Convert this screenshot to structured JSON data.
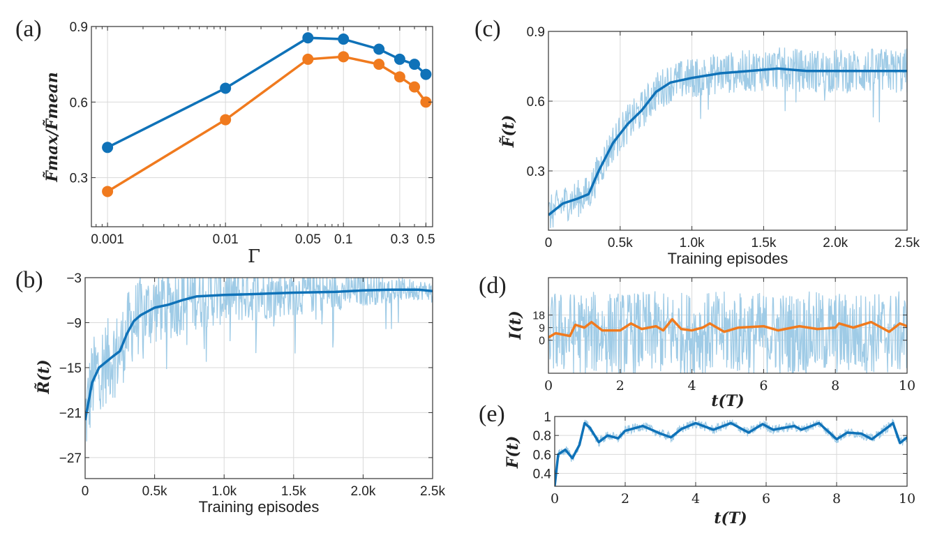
{
  "colors": {
    "blue": "#0f72b8",
    "orange": "#f07a1e",
    "light_blue": "#9fcbe6",
    "grid": "#d9d9d9"
  },
  "chart_data": [
    {
      "panel": "(a)",
      "type": "line",
      "xscale": "log",
      "xlabel": "Γ",
      "ylabel": "F̃max/F̃mean",
      "xlim": [
        0.00073,
        0.57
      ],
      "ylim": [
        0.105,
        0.9
      ],
      "grid": true,
      "xticks": [
        0.001,
        0.01,
        0.05,
        0.1,
        0.3,
        0.5
      ],
      "xtick_labels": [
        "0.001",
        "0.01",
        "0.05",
        "0.1",
        "0.3",
        "0.5"
      ],
      "yticks": [
        0.3,
        0.6,
        0.9
      ],
      "ytick_labels": [
        "0.3",
        "0.6",
        "0.9"
      ],
      "x": [
        0.001,
        0.01,
        0.05,
        0.1,
        0.2,
        0.3,
        0.4,
        0.5
      ],
      "series": [
        {
          "color": "blue",
          "markers": true,
          "values": [
            0.42,
            0.655,
            0.855,
            0.85,
            0.81,
            0.77,
            0.75,
            0.71
          ]
        },
        {
          "color": "orange",
          "markers": true,
          "values": [
            0.245,
            0.53,
            0.77,
            0.78,
            0.75,
            0.7,
            0.66,
            0.6
          ]
        }
      ]
    },
    {
      "panel": "(b)",
      "type": "line",
      "xlabel": "Training episodes",
      "ylabel": "R̃(t)",
      "xlim": [
        0,
        2500
      ],
      "ylim": [
        -29.8,
        -3
      ],
      "grid": true,
      "xticks": [
        0,
        500,
        1000,
        1500,
        2000,
        2500
      ],
      "xtick_labels": [
        "0",
        "0.5k",
        "1.0k",
        "1.5k",
        "2.0k",
        "2.5k"
      ],
      "yticks": [
        -27,
        -21,
        -15,
        -9,
        -3
      ],
      "ytick_labels": [
        "−27",
        "−21",
        "−15",
        "−9",
        "−3"
      ],
      "series": [
        {
          "color": "light_blue",
          "kind": "raw",
          "spread_early": 6,
          "spread_late": 1.2,
          "points": [
            [
              0,
              -22
            ],
            [
              50,
              -17
            ],
            [
              100,
              -15
            ],
            [
              200,
              -13.5
            ],
            [
              250,
              -12.8
            ],
            [
              300,
              -10.5
            ],
            [
              350,
              -8.8
            ],
            [
              400,
              -8
            ],
            [
              500,
              -7
            ],
            [
              600,
              -6.6
            ],
            [
              700,
              -6
            ],
            [
              800,
              -5.5
            ],
            [
              1000,
              -5.3
            ],
            [
              1200,
              -5.2
            ],
            [
              1500,
              -5
            ],
            [
              1800,
              -4.9
            ],
            [
              2000,
              -4.7
            ],
            [
              2200,
              -4.6
            ],
            [
              2400,
              -4.6
            ],
            [
              2500,
              -4.8
            ]
          ]
        },
        {
          "color": "blue",
          "kind": "smoothed",
          "points": [
            [
              0,
              -22
            ],
            [
              50,
              -17
            ],
            [
              100,
              -15
            ],
            [
              200,
              -13.5
            ],
            [
              250,
              -12.8
            ],
            [
              300,
              -10.5
            ],
            [
              350,
              -8.8
            ],
            [
              400,
              -8
            ],
            [
              500,
              -7
            ],
            [
              600,
              -6.6
            ],
            [
              700,
              -6
            ],
            [
              800,
              -5.5
            ],
            [
              1000,
              -5.3
            ],
            [
              1200,
              -5.2
            ],
            [
              1500,
              -5
            ],
            [
              1800,
              -4.9
            ],
            [
              2000,
              -4.7
            ],
            [
              2200,
              -4.6
            ],
            [
              2400,
              -4.6
            ],
            [
              2500,
              -4.8
            ]
          ]
        }
      ]
    },
    {
      "panel": "(c)",
      "type": "line",
      "xlabel": "Training episodes",
      "ylabel": "F̃(t)",
      "xlim": [
        0,
        2500
      ],
      "ylim": [
        0.045,
        0.9
      ],
      "grid": true,
      "xticks": [
        0,
        500,
        1000,
        1500,
        2000,
        2500
      ],
      "xtick_labels": [
        "0",
        "0.5k",
        "1.0k",
        "1.5k",
        "2.0k",
        "2.5k"
      ],
      "yticks": [
        0.3,
        0.6,
        0.9
      ],
      "ytick_labels": [
        "0.3",
        "0.6",
        "0.9"
      ],
      "series": [
        {
          "color": "light_blue",
          "kind": "raw",
          "spread_early": 0.08,
          "spread_late": 0.1,
          "points": [
            [
              0,
              0.11
            ],
            [
              100,
              0.16
            ],
            [
              200,
              0.18
            ],
            [
              280,
              0.2
            ],
            [
              350,
              0.3
            ],
            [
              450,
              0.42
            ],
            [
              550,
              0.5
            ],
            [
              650,
              0.56
            ],
            [
              750,
              0.64
            ],
            [
              850,
              0.68
            ],
            [
              1000,
              0.7
            ],
            [
              1200,
              0.72
            ],
            [
              1400,
              0.73
            ],
            [
              1600,
              0.74
            ],
            [
              1800,
              0.73
            ],
            [
              2000,
              0.73
            ],
            [
              2200,
              0.73
            ],
            [
              2500,
              0.73
            ]
          ]
        },
        {
          "color": "blue",
          "kind": "smoothed",
          "points": [
            [
              0,
              0.11
            ],
            [
              100,
              0.16
            ],
            [
              200,
              0.18
            ],
            [
              280,
              0.2
            ],
            [
              350,
              0.3
            ],
            [
              450,
              0.42
            ],
            [
              550,
              0.5
            ],
            [
              650,
              0.56
            ],
            [
              750,
              0.64
            ],
            [
              850,
              0.68
            ],
            [
              1000,
              0.7
            ],
            [
              1200,
              0.72
            ],
            [
              1400,
              0.73
            ],
            [
              1600,
              0.74
            ],
            [
              1800,
              0.73
            ],
            [
              2000,
              0.73
            ],
            [
              2200,
              0.73
            ],
            [
              2500,
              0.73
            ]
          ]
        }
      ]
    },
    {
      "panel": "(d)",
      "type": "line",
      "xlabel": "t(T)",
      "ylabel": "I(t)",
      "xlim": [
        0,
        10
      ],
      "ylim": [
        -23.6,
        44.7
      ],
      "grid": true,
      "xticks": [
        0,
        2,
        4,
        6,
        8,
        10
      ],
      "xtick_labels": [
        "0",
        "2",
        "4",
        "6",
        "8",
        "10"
      ],
      "yticks": [
        0,
        9,
        18
      ],
      "ytick_labels": [
        "0",
        "9",
        "18"
      ],
      "series": [
        {
          "color": "light_blue",
          "kind": "raw",
          "spread_early": 30,
          "spread_late": 30,
          "points": [
            [
              0,
              5
            ],
            [
              10,
              5
            ]
          ]
        },
        {
          "color": "orange",
          "kind": "smoothed",
          "points": [
            [
              0,
              2
            ],
            [
              0.2,
              5
            ],
            [
              0.4,
              4
            ],
            [
              0.6,
              3
            ],
            [
              0.75,
              11
            ],
            [
              1,
              9
            ],
            [
              1.2,
              13
            ],
            [
              1.5,
              7
            ],
            [
              2,
              7
            ],
            [
              2.3,
              12
            ],
            [
              2.6,
              8
            ],
            [
              3,
              10
            ],
            [
              3.2,
              7
            ],
            [
              3.45,
              15
            ],
            [
              3.7,
              8
            ],
            [
              4,
              7
            ],
            [
              4.3,
              9
            ],
            [
              4.5,
              12
            ],
            [
              4.9,
              6
            ],
            [
              5.3,
              9
            ],
            [
              6,
              10
            ],
            [
              6.4,
              7
            ],
            [
              7,
              10
            ],
            [
              7.5,
              8
            ],
            [
              8,
              9
            ],
            [
              8.1,
              12
            ],
            [
              8.5,
              9
            ],
            [
              9,
              13
            ],
            [
              9.5,
              6
            ],
            [
              9.8,
              12
            ],
            [
              10,
              10
            ]
          ]
        }
      ]
    },
    {
      "panel": "(e)",
      "type": "line",
      "xlabel": "t(T)",
      "ylabel": "F(t)",
      "xlim": [
        0,
        10
      ],
      "ylim": [
        0.264,
        1
      ],
      "grid": true,
      "xticks": [
        0,
        2,
        4,
        6,
        8,
        10
      ],
      "xtick_labels": [
        "0",
        "2",
        "4",
        "6",
        "8",
        "10"
      ],
      "yticks": [
        0.4,
        0.6,
        0.8,
        1
      ],
      "ytick_labels": [
        "0.4",
        "0.6",
        "0.8",
        "1"
      ],
      "series": [
        {
          "color": "light_blue",
          "kind": "raw",
          "spread_early": 0.05,
          "spread_late": 0.05,
          "points": [
            [
              0,
              0.27
            ],
            [
              0.1,
              0.6
            ],
            [
              0.3,
              0.65
            ],
            [
              0.5,
              0.56
            ],
            [
              0.7,
              0.7
            ],
            [
              0.85,
              0.93
            ],
            [
              1,
              0.88
            ],
            [
              1.25,
              0.73
            ],
            [
              1.5,
              0.8
            ],
            [
              1.8,
              0.77
            ],
            [
              2,
              0.85
            ],
            [
              2.5,
              0.9
            ],
            [
              3,
              0.82
            ],
            [
              3.3,
              0.78
            ],
            [
              3.6,
              0.87
            ],
            [
              4,
              0.93
            ],
            [
              4.5,
              0.86
            ],
            [
              5,
              0.93
            ],
            [
              5.5,
              0.83
            ],
            [
              5.9,
              0.92
            ],
            [
              6.2,
              0.86
            ],
            [
              6.8,
              0.9
            ],
            [
              7,
              0.86
            ],
            [
              7.5,
              0.93
            ],
            [
              8,
              0.76
            ],
            [
              8.3,
              0.83
            ],
            [
              8.7,
              0.82
            ],
            [
              9,
              0.76
            ],
            [
              9.5,
              0.9
            ],
            [
              9.6,
              0.93
            ],
            [
              9.8,
              0.72
            ],
            [
              10,
              0.78
            ]
          ]
        },
        {
          "color": "blue",
          "kind": "smoothed",
          "points": [
            [
              0,
              0.27
            ],
            [
              0.1,
              0.6
            ],
            [
              0.3,
              0.65
            ],
            [
              0.5,
              0.56
            ],
            [
              0.7,
              0.7
            ],
            [
              0.85,
              0.93
            ],
            [
              1,
              0.88
            ],
            [
              1.25,
              0.73
            ],
            [
              1.5,
              0.8
            ],
            [
              1.8,
              0.77
            ],
            [
              2,
              0.85
            ],
            [
              2.5,
              0.9
            ],
            [
              3,
              0.82
            ],
            [
              3.3,
              0.78
            ],
            [
              3.6,
              0.87
            ],
            [
              4,
              0.93
            ],
            [
              4.5,
              0.86
            ],
            [
              5,
              0.93
            ],
            [
              5.5,
              0.83
            ],
            [
              5.9,
              0.92
            ],
            [
              6.2,
              0.86
            ],
            [
              6.8,
              0.9
            ],
            [
              7,
              0.86
            ],
            [
              7.5,
              0.93
            ],
            [
              8,
              0.76
            ],
            [
              8.3,
              0.83
            ],
            [
              8.7,
              0.82
            ],
            [
              9,
              0.76
            ],
            [
              9.5,
              0.9
            ],
            [
              9.6,
              0.93
            ],
            [
              9.8,
              0.72
            ],
            [
              10,
              0.78
            ]
          ]
        }
      ]
    }
  ]
}
